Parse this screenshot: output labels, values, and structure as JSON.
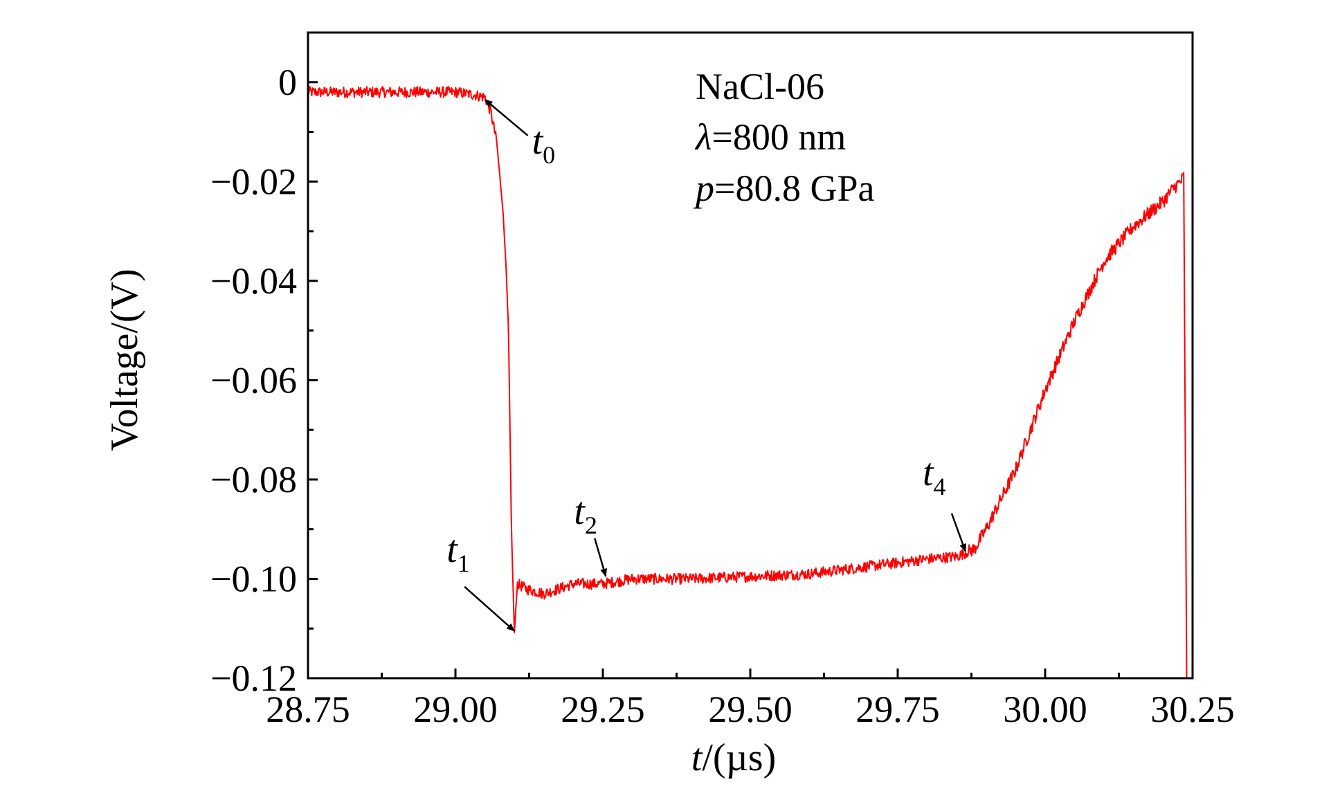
{
  "chart_data": {
    "type": "line",
    "xlabel_var": "t",
    "xlabel_unit": "/(µs)",
    "ylabel": "Voltage/(V)",
    "xlim": [
      28.75,
      30.25
    ],
    "ylim": [
      -0.12,
      0.01
    ],
    "xticks": [
      28.75,
      29.0,
      29.25,
      29.5,
      29.75,
      30.0,
      30.25
    ],
    "xtick_labels": [
      "28.75",
      "29.00",
      "29.25",
      "29.50",
      "29.75",
      "30.00",
      "30.25"
    ],
    "yticks": [
      0,
      -0.02,
      -0.04,
      -0.06,
      -0.08,
      -0.1,
      -0.12
    ],
    "ytick_labels": [
      "0",
      "−0.02",
      "−0.04",
      "−0.06",
      "−0.08",
      "−0.10",
      "−0.12"
    ],
    "legend": {
      "sample": "NaCl-06",
      "wavelength_symbol": "λ",
      "wavelength_value": "=800 nm",
      "pressure_symbol": "p",
      "pressure_value": "=80.8 GPa"
    },
    "series": [
      {
        "name": "NaCl-06",
        "color": "#ff0000",
        "x": [
          28.75,
          28.8,
          28.9,
          29.0,
          29.03,
          29.05,
          29.06,
          29.07,
          29.08,
          29.085,
          29.09,
          29.095,
          29.1,
          29.105,
          29.12,
          29.15,
          29.2,
          29.25,
          29.3,
          29.4,
          29.5,
          29.6,
          29.7,
          29.8,
          29.85,
          29.88,
          29.9,
          29.95,
          30.0,
          30.05,
          30.1,
          30.15,
          30.2,
          30.22,
          30.23,
          30.235,
          30.24
        ],
        "y": [
          -0.002,
          -0.002,
          -0.002,
          -0.002,
          -0.0025,
          -0.003,
          -0.006,
          -0.012,
          -0.025,
          -0.035,
          -0.05,
          -0.09,
          -0.111,
          -0.101,
          -0.102,
          -0.103,
          -0.101,
          -0.101,
          -0.1,
          -0.1,
          -0.0995,
          -0.099,
          -0.0975,
          -0.096,
          -0.0955,
          -0.094,
          -0.09,
          -0.078,
          -0.062,
          -0.048,
          -0.036,
          -0.029,
          -0.024,
          -0.021,
          -0.02,
          -0.019,
          -0.12
        ]
      }
    ],
    "annotations": [
      {
        "symbol": "t",
        "sub": "0",
        "x": 29.05,
        "y": -0.0035
      },
      {
        "symbol": "t",
        "sub": "1",
        "x": 29.1,
        "y": -0.1105
      },
      {
        "symbol": "t",
        "sub": "2",
        "x": 29.255,
        "y": -0.0995
      },
      {
        "symbol": "t",
        "sub": "4",
        "x": 29.865,
        "y": -0.0945
      }
    ]
  }
}
